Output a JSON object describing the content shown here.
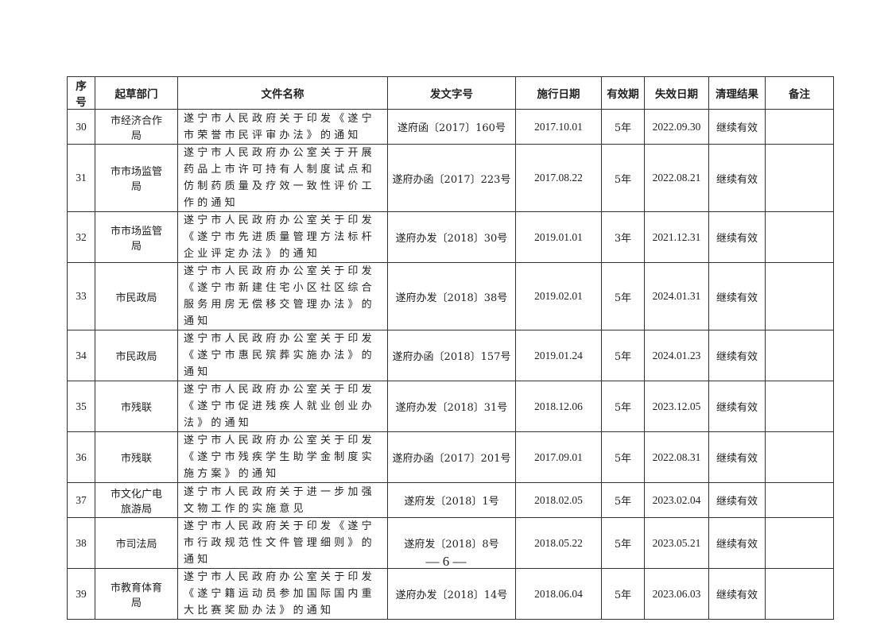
{
  "headers": [
    "序号",
    "起草部门",
    "文件名称",
    "发文字号",
    "施行日期",
    "有效期",
    "失效日期",
    "清理结果",
    "备注"
  ],
  "header_seq_lines": [
    "序",
    "号"
  ],
  "rows": [
    {
      "no": "30",
      "dept": "市经济合作局",
      "name": "遂宁市人民政府关于印发《遂宁市荣誉市民评审办法》的通知",
      "doc_no": "遂府函〔2017〕160号",
      "start": "2017.10.01",
      "validity": "5年",
      "end": "2022.09.30",
      "result": "继续有效",
      "remark": ""
    },
    {
      "no": "31",
      "dept": "市市场监管局",
      "name": "遂宁市人民政府办公室关于开展药品上市许可持有人制度试点和仿制药质量及疗效一致性评价工作的通知",
      "doc_no": "遂府办函〔2017〕223号",
      "start": "2017.08.22",
      "validity": "5年",
      "end": "2022.08.21",
      "result": "继续有效",
      "remark": ""
    },
    {
      "no": "32",
      "dept": "市市场监管局",
      "name": "遂宁市人民政府办公室关于印发《遂宁市先进质量管理方法标杆企业评定办法》的通知",
      "doc_no": "遂府办发〔2018〕30号",
      "start": "2019.01.01",
      "validity": "3年",
      "end": "2021.12.31",
      "result": "继续有效",
      "remark": ""
    },
    {
      "no": "33",
      "dept": "市民政局",
      "name": "遂宁市人民政府办公室关于印发《遂宁市新建住宅小区社区综合服务用房无偿移交管理办法》的通知",
      "doc_no": "遂府办发〔2018〕38号",
      "start": "2019.02.01",
      "validity": "5年",
      "end": "2024.01.31",
      "result": "继续有效",
      "remark": ""
    },
    {
      "no": "34",
      "dept": "市民政局",
      "name": "遂宁市人民政府办公室关于印发《遂宁市惠民殡葬实施办法》的通知",
      "doc_no": "遂府办函〔2018〕157号",
      "start": "2019.01.24",
      "validity": "5年",
      "end": "2024.01.23",
      "result": "继续有效",
      "remark": ""
    },
    {
      "no": "35",
      "dept": "市残联",
      "name": "遂宁市人民政府办公室关于印发《遂宁市促进残疾人就业创业办法》的通知",
      "doc_no": "遂府办发〔2018〕31号",
      "start": "2018.12.06",
      "validity": "5年",
      "end": "2023.12.05",
      "result": "继续有效",
      "remark": ""
    },
    {
      "no": "36",
      "dept": "市残联",
      "name": "遂宁市人民政府办公室关于印发《遂宁市残疾学生助学金制度实施方案》的通知",
      "doc_no": "遂府办函〔2017〕201号",
      "start": "2017.09.01",
      "validity": "5年",
      "end": "2022.08.31",
      "result": "继续有效",
      "remark": ""
    },
    {
      "no": "37",
      "dept": "市文化广电旅游局",
      "name": "遂宁市人民政府关于进一步加强文物工作的实施意见",
      "doc_no": "遂府发〔2018〕1号",
      "start": "2018.02.05",
      "validity": "5年",
      "end": "2023.02.04",
      "result": "继续有效",
      "remark": ""
    },
    {
      "no": "38",
      "dept": "市司法局",
      "name": "遂宁市人民政府关于印发《遂宁市行政规范性文件管理细则》的通知",
      "doc_no": "遂府发〔2018〕8号",
      "start": "2018.05.22",
      "validity": "5年",
      "end": "2023.05.21",
      "result": "继续有效",
      "remark": ""
    },
    {
      "no": "39",
      "dept": "市教育体育局",
      "name": "遂宁市人民政府办公室关于印发《遂宁籍运动员参加国际国内重大比赛奖励办法》的通知",
      "doc_no": "遂府办发〔2018〕14号",
      "start": "2018.06.04",
      "validity": "5年",
      "end": "2023.06.03",
      "result": "继续有效",
      "remark": ""
    }
  ],
  "footer": {
    "page_number": "— 6 —"
  }
}
